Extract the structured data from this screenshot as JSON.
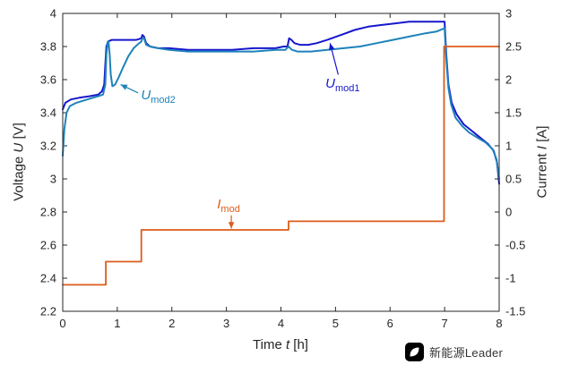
{
  "figure": {
    "background": "#ffffff"
  },
  "watermark": {
    "text": "新能源Leader"
  },
  "chart_data": {
    "type": "line",
    "title": "",
    "grid": false,
    "axis_color": "#262626",
    "xlabel": {
      "pre": "Time ",
      "var": "t",
      "post": " [h]"
    },
    "ylabel_left": {
      "pre": "Voltage ",
      "var": "U",
      "post": " [V]"
    },
    "ylabel_right": {
      "pre": "Current ",
      "var": "I",
      "post": " [A]"
    },
    "x_range": [
      0,
      8
    ],
    "y_left_range": [
      2.2,
      4
    ],
    "y_right_range": [
      -1.5,
      3
    ],
    "x_ticks": [
      "0",
      "1",
      "2",
      "3",
      "4",
      "5",
      "6",
      "7",
      "8"
    ],
    "y_left_ticks": [
      "2.2",
      "2.4",
      "2.6",
      "2.8",
      "3",
      "3.2",
      "3.4",
      "3.6",
      "3.8",
      "4"
    ],
    "y_right_ticks": [
      "-1.5",
      "-1",
      "-0.5",
      "0",
      "0.5",
      "1",
      "1.5",
      "2",
      "2.5",
      "3"
    ],
    "series": [
      {
        "name": "U_mod1",
        "axis": "left",
        "color": "#1717cd",
        "width": 2,
        "points": [
          [
            0,
            3.42
          ],
          [
            0.05,
            3.46
          ],
          [
            0.15,
            3.48
          ],
          [
            0.3,
            3.49
          ],
          [
            0.5,
            3.5
          ],
          [
            0.65,
            3.51
          ],
          [
            0.72,
            3.53
          ],
          [
            0.76,
            3.57
          ],
          [
            0.78,
            3.69
          ],
          [
            0.8,
            3.8
          ],
          [
            0.83,
            3.83
          ],
          [
            0.9,
            3.84
          ],
          [
            1.05,
            3.84
          ],
          [
            1.2,
            3.84
          ],
          [
            1.35,
            3.84
          ],
          [
            1.44,
            3.85
          ],
          [
            1.46,
            3.87
          ],
          [
            1.49,
            3.86
          ],
          [
            1.53,
            3.82
          ],
          [
            1.6,
            3.8
          ],
          [
            1.75,
            3.79
          ],
          [
            1.95,
            3.79
          ],
          [
            2.3,
            3.78
          ],
          [
            2.7,
            3.78
          ],
          [
            3.1,
            3.78
          ],
          [
            3.5,
            3.79
          ],
          [
            3.9,
            3.79
          ],
          [
            4.05,
            3.8
          ],
          [
            4.12,
            3.8
          ],
          [
            4.15,
            3.85
          ],
          [
            4.19,
            3.84
          ],
          [
            4.25,
            3.82
          ],
          [
            4.35,
            3.81
          ],
          [
            4.5,
            3.81
          ],
          [
            4.65,
            3.82
          ],
          [
            4.85,
            3.84
          ],
          [
            5.1,
            3.87
          ],
          [
            5.35,
            3.9
          ],
          [
            5.6,
            3.92
          ],
          [
            5.85,
            3.93
          ],
          [
            6.1,
            3.94
          ],
          [
            6.35,
            3.95
          ],
          [
            6.6,
            3.95
          ],
          [
            6.85,
            3.95
          ],
          [
            7,
            3.95
          ],
          [
            7.03,
            3.75
          ],
          [
            7.07,
            3.57
          ],
          [
            7.13,
            3.46
          ],
          [
            7.22,
            3.39
          ],
          [
            7.35,
            3.33
          ],
          [
            7.5,
            3.29
          ],
          [
            7.65,
            3.25
          ],
          [
            7.8,
            3.21
          ],
          [
            7.9,
            3.17
          ],
          [
            7.96,
            3.1
          ],
          [
            8,
            2.97
          ]
        ]
      },
      {
        "name": "U_mod2",
        "axis": "left",
        "color": "#1e82ba",
        "width": 2,
        "points": [
          [
            0,
            3.14
          ],
          [
            0.03,
            3.3
          ],
          [
            0.07,
            3.4
          ],
          [
            0.13,
            3.44
          ],
          [
            0.25,
            3.46
          ],
          [
            0.45,
            3.48
          ],
          [
            0.65,
            3.5
          ],
          [
            0.74,
            3.51
          ],
          [
            0.78,
            3.57
          ],
          [
            0.8,
            3.75
          ],
          [
            0.82,
            3.82
          ],
          [
            0.84,
            3.83
          ],
          [
            0.86,
            3.75
          ],
          [
            0.88,
            3.63
          ],
          [
            0.91,
            3.56
          ],
          [
            0.96,
            3.57
          ],
          [
            1.02,
            3.61
          ],
          [
            1.1,
            3.67
          ],
          [
            1.2,
            3.74
          ],
          [
            1.3,
            3.79
          ],
          [
            1.4,
            3.82
          ],
          [
            1.44,
            3.83
          ],
          [
            1.46,
            3.85
          ],
          [
            1.49,
            3.85
          ],
          [
            1.53,
            3.81
          ],
          [
            1.6,
            3.8
          ],
          [
            1.75,
            3.79
          ],
          [
            1.95,
            3.78
          ],
          [
            2.3,
            3.77
          ],
          [
            2.7,
            3.77
          ],
          [
            3.1,
            3.77
          ],
          [
            3.5,
            3.77
          ],
          [
            3.9,
            3.78
          ],
          [
            4.08,
            3.78
          ],
          [
            4.14,
            3.8
          ],
          [
            4.2,
            3.78
          ],
          [
            4.3,
            3.77
          ],
          [
            4.55,
            3.77
          ],
          [
            4.85,
            3.78
          ],
          [
            5.15,
            3.79
          ],
          [
            5.45,
            3.8
          ],
          [
            5.75,
            3.82
          ],
          [
            6.05,
            3.84
          ],
          [
            6.35,
            3.86
          ],
          [
            6.65,
            3.88
          ],
          [
            6.85,
            3.89
          ],
          [
            7,
            3.91
          ],
          [
            7.03,
            3.72
          ],
          [
            7.07,
            3.55
          ],
          [
            7.12,
            3.45
          ],
          [
            7.2,
            3.37
          ],
          [
            7.32,
            3.32
          ],
          [
            7.45,
            3.28
          ],
          [
            7.6,
            3.25
          ],
          [
            7.75,
            3.22
          ],
          [
            7.88,
            3.18
          ],
          [
            7.95,
            3.12
          ],
          [
            8,
            3.0
          ]
        ]
      },
      {
        "name": "I_mod",
        "axis": "right",
        "color": "#dd5b1a",
        "width": 1.8,
        "points": [
          [
            0,
            -1.1
          ],
          [
            0.79,
            -1.1
          ],
          [
            0.79,
            -0.75
          ],
          [
            1.44,
            -0.75
          ],
          [
            1.44,
            -0.27
          ],
          [
            4.14,
            -0.27
          ],
          [
            4.14,
            -0.14
          ],
          [
            6.99,
            -0.14
          ],
          [
            6.99,
            2.5
          ],
          [
            8,
            2.5
          ]
        ]
      }
    ],
    "annotations": [
      {
        "id": "umod1",
        "var": "U",
        "sub": "mod1",
        "color": "#1717cd",
        "label_at": [
          5.13,
          3.57
        ],
        "arrow_from": [
          5.05,
          3.63
        ],
        "arrow_to": [
          4.9,
          3.82
        ]
      },
      {
        "id": "umod2",
        "var": "U",
        "sub": "mod2",
        "color": "#1e82ba",
        "label_at": [
          1.75,
          3.5
        ],
        "arrow_from": [
          1.38,
          3.52
        ],
        "arrow_to": [
          1.06,
          3.57
        ]
      },
      {
        "id": "imod",
        "var": "I",
        "sub": "mod",
        "color": "#dd5b1a",
        "label_at": [
          3.04,
          2.84
        ],
        "arrow_from": [
          3.09,
          2.78
        ],
        "arrow_to": [
          3.09,
          2.7
        ]
      }
    ]
  }
}
